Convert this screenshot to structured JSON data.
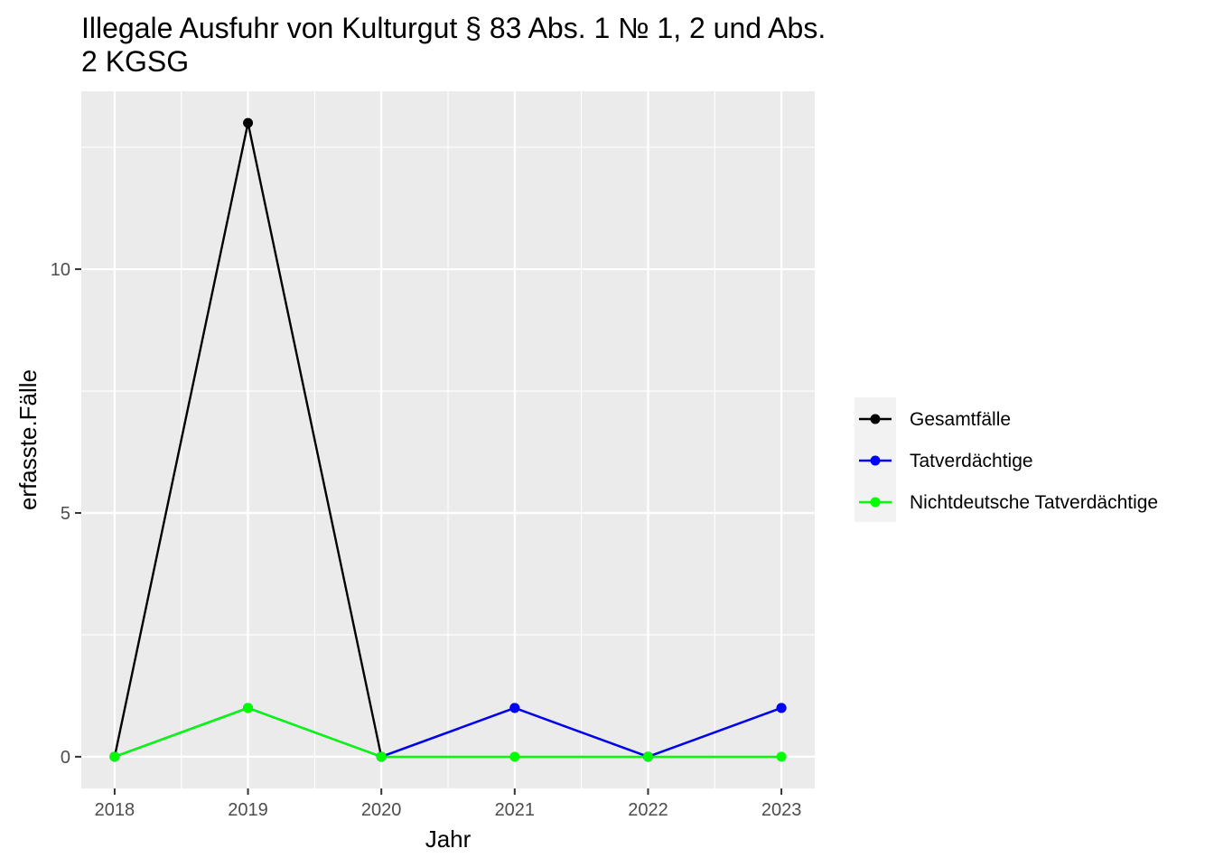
{
  "chart_data": {
    "type": "line",
    "title_line1": "Illegale Ausfuhr von Kulturgut § 83 Abs. 1 № 1, 2 und Abs.",
    "title_line2": "2 KGSG",
    "xlabel": "Jahr",
    "ylabel": "erfasste.Fälle",
    "x": [
      2018,
      2019,
      2020,
      2021,
      2022,
      2023
    ],
    "x_tick_labels": [
      "2018",
      "2019",
      "2020",
      "2021",
      "2022",
      "2023"
    ],
    "y_ticks": [
      0,
      5,
      10
    ],
    "y_tick_labels": [
      "0",
      "5",
      "10"
    ],
    "xlim": [
      2017.75,
      2023.25
    ],
    "ylim": [
      -0.65,
      13.65
    ],
    "grid": true,
    "legend_position": "right",
    "series": [
      {
        "name": "Gesamtfälle",
        "color": "#000000",
        "values": [
          0,
          13,
          0,
          1,
          0,
          1
        ]
      },
      {
        "name": "Tatverdächtige",
        "color": "#0000ff",
        "values": [
          0,
          1,
          0,
          1,
          0,
          1
        ]
      },
      {
        "name": "Nichtdeutsche Tatverdächtige",
        "color": "#00ff00",
        "values": [
          0,
          1,
          0,
          0,
          0,
          0
        ]
      }
    ]
  }
}
